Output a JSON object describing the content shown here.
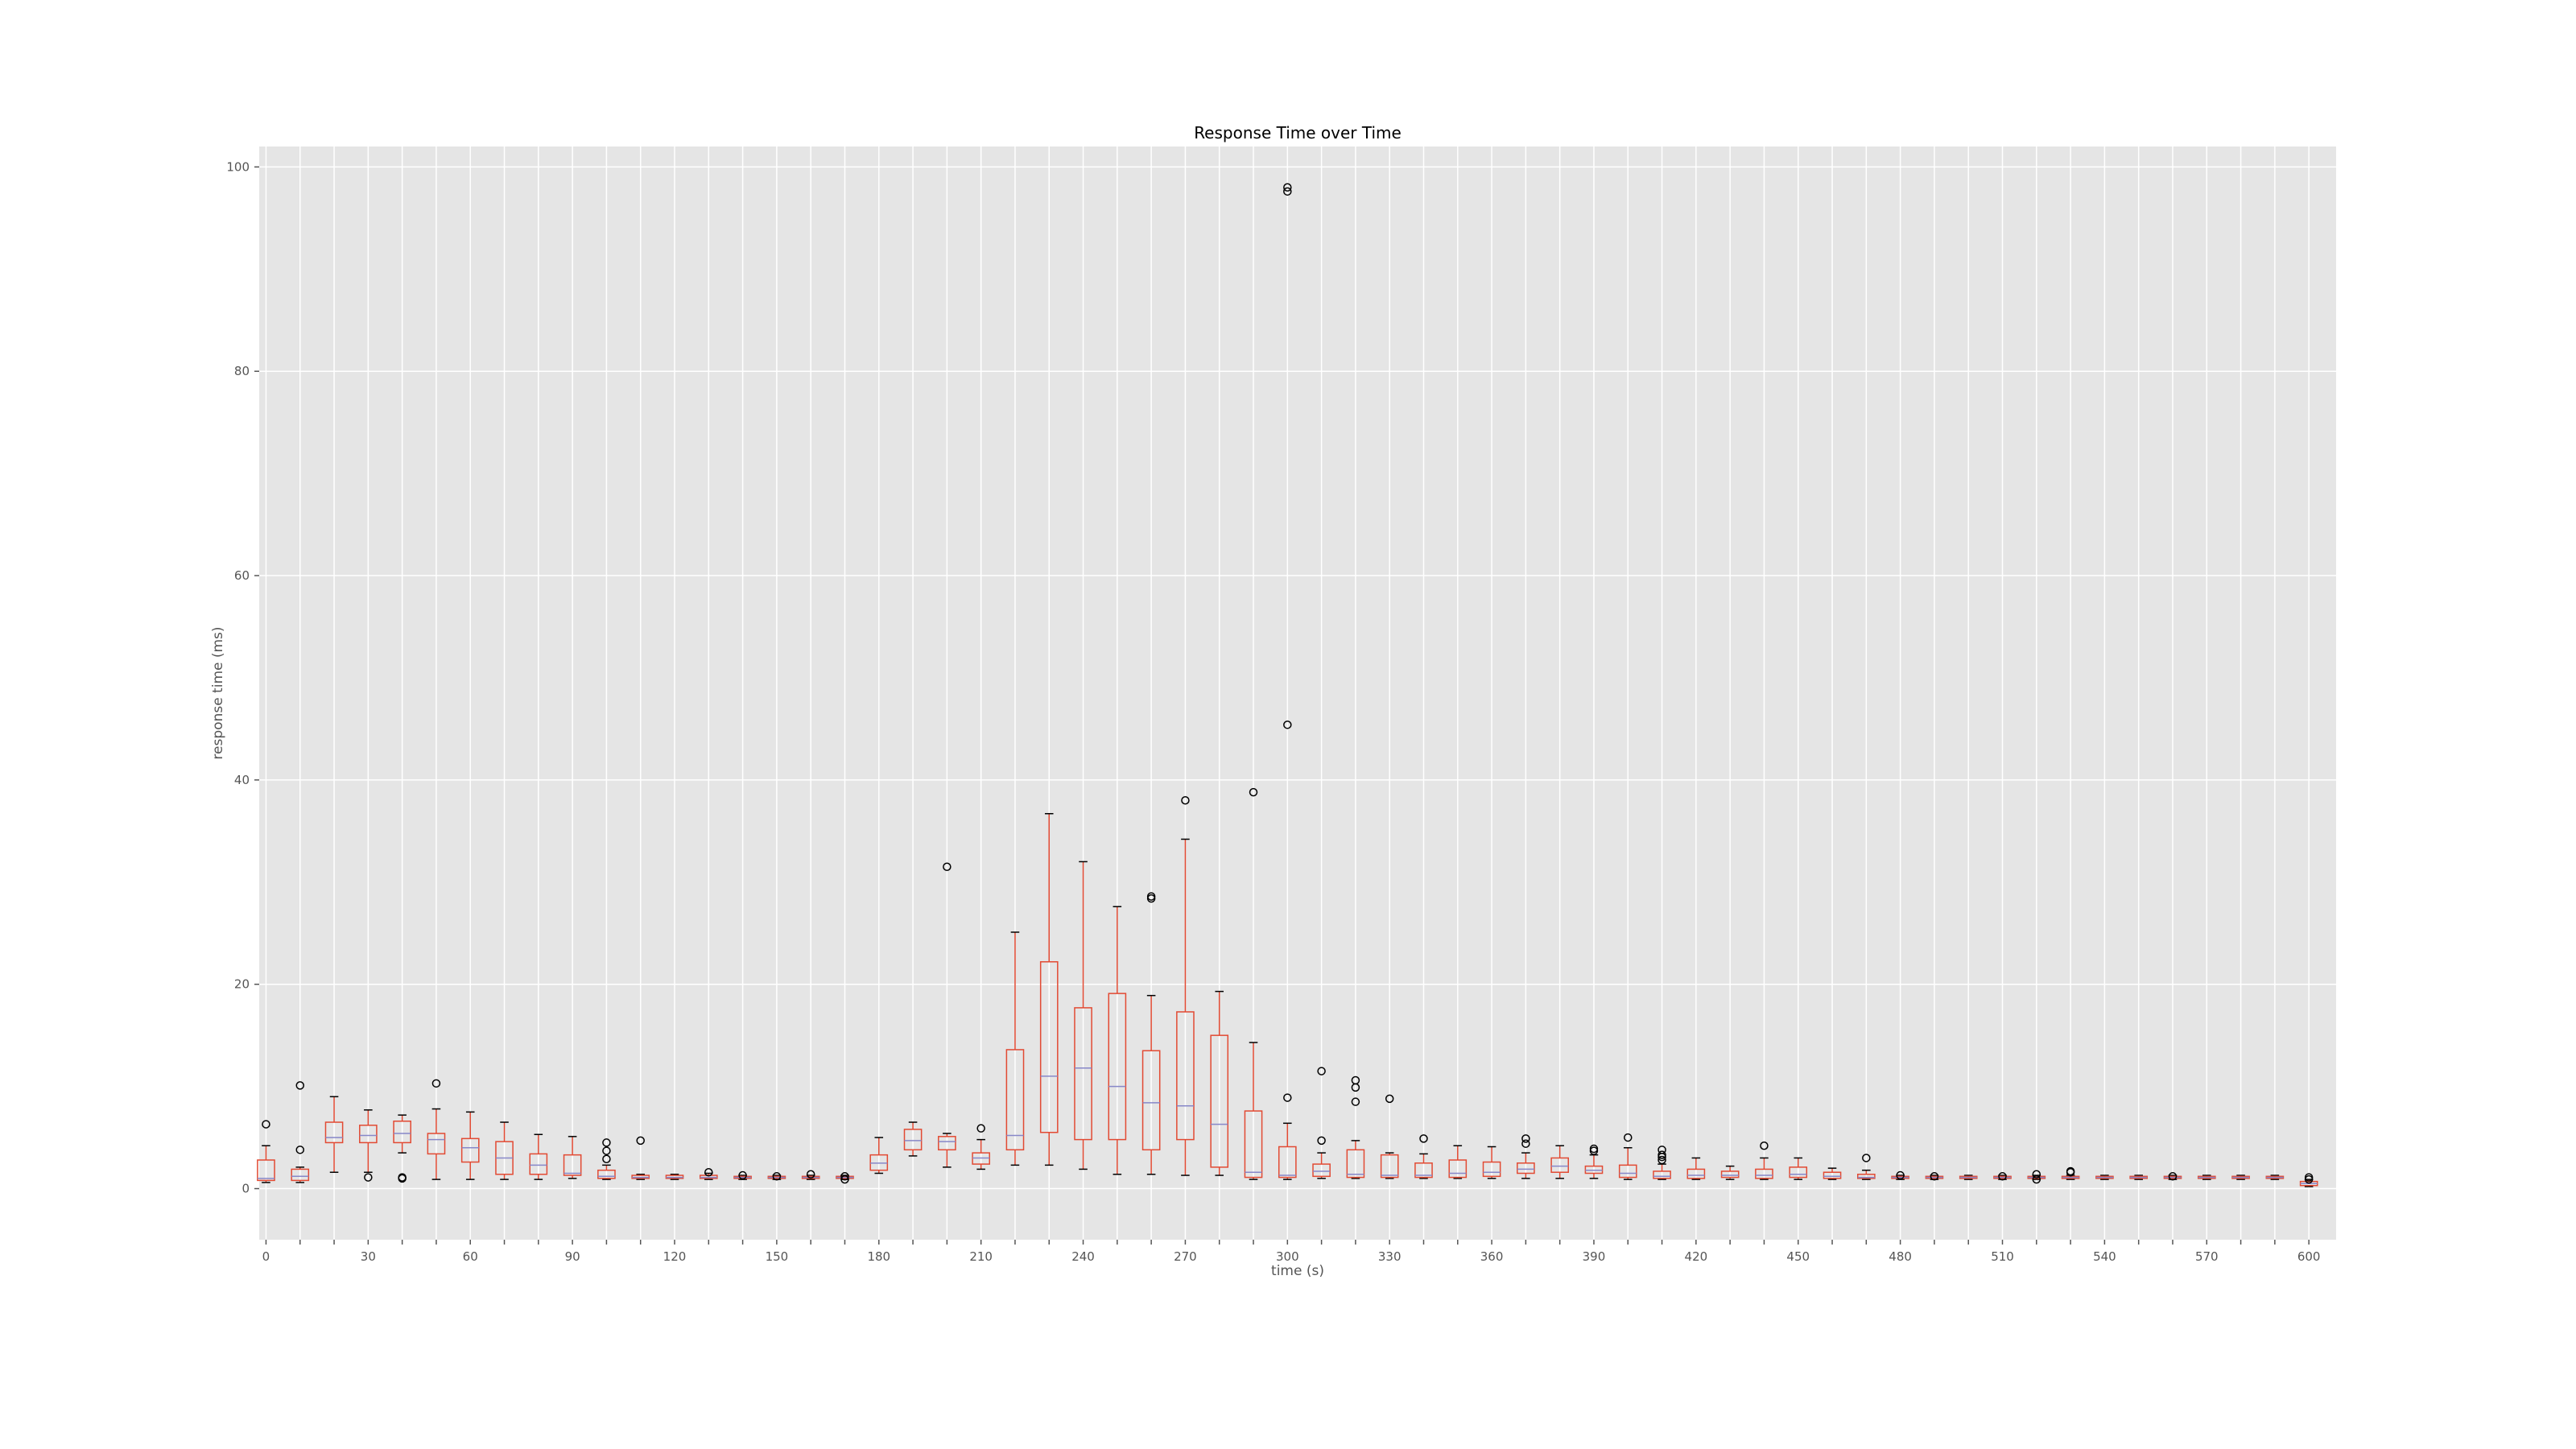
{
  "chart_data": {
    "type": "box",
    "title": "Response Time over Time",
    "xlabel": "time (s)",
    "ylabel": "response time (ms)",
    "xlim": [
      -2,
      608
    ],
    "ylim": [
      -5,
      102
    ],
    "x_ticks_labeled": [
      0,
      30,
      60,
      90,
      120,
      150,
      180,
      210,
      240,
      270,
      300,
      330,
      360,
      390,
      420,
      450,
      480,
      510,
      540,
      570,
      600
    ],
    "y_ticks": [
      0,
      20,
      40,
      60,
      80,
      100
    ],
    "grid": true,
    "colors": {
      "plot_background": "#e5e5e5",
      "grid": "#ffffff",
      "box": "#e24a33",
      "median": "#8787c8",
      "whisker": "#e24a33",
      "cap": "#000000",
      "outlier": "#000000"
    },
    "boxes": [
      {
        "x": 0,
        "q1": 0.8,
        "median": 1.0,
        "q3": 2.8,
        "whislo": 0.6,
        "whishi": 4.2,
        "fliers": [
          6.3
        ]
      },
      {
        "x": 10,
        "q1": 0.8,
        "median": 1.2,
        "q3": 1.9,
        "whislo": 0.6,
        "whishi": 2.1,
        "fliers": [
          3.8,
          10.1
        ]
      },
      {
        "x": 20,
        "q1": 4.5,
        "median": 5.0,
        "q3": 6.5,
        "whislo": 1.6,
        "whishi": 9.0,
        "fliers": []
      },
      {
        "x": 30,
        "q1": 4.5,
        "median": 5.2,
        "q3": 6.2,
        "whislo": 1.6,
        "whishi": 7.7,
        "fliers": [
          1.1
        ]
      },
      {
        "x": 40,
        "q1": 4.5,
        "median": 5.4,
        "q3": 6.6,
        "whislo": 3.5,
        "whishi": 7.2,
        "fliers": [
          1.0,
          1.1
        ]
      },
      {
        "x": 50,
        "q1": 3.4,
        "median": 4.8,
        "q3": 5.4,
        "whislo": 0.9,
        "whishi": 7.8,
        "fliers": [
          10.3
        ]
      },
      {
        "x": 60,
        "q1": 2.6,
        "median": 4.0,
        "q3": 4.9,
        "whislo": 0.9,
        "whishi": 7.5,
        "fliers": []
      },
      {
        "x": 70,
        "q1": 1.4,
        "median": 3.0,
        "q3": 4.6,
        "whislo": 0.9,
        "whishi": 6.5,
        "fliers": []
      },
      {
        "x": 80,
        "q1": 1.4,
        "median": 2.3,
        "q3": 3.4,
        "whislo": 0.9,
        "whishi": 5.3,
        "fliers": []
      },
      {
        "x": 90,
        "q1": 1.3,
        "median": 1.5,
        "q3": 3.3,
        "whislo": 1.0,
        "whishi": 5.1,
        "fliers": []
      },
      {
        "x": 100,
        "q1": 1.0,
        "median": 1.2,
        "q3": 1.8,
        "whislo": 0.9,
        "whishi": 2.3,
        "fliers": [
          2.9,
          3.7,
          4.5
        ]
      },
      {
        "x": 110,
        "q1": 1.0,
        "median": 1.1,
        "q3": 1.3,
        "whislo": 0.9,
        "whishi": 1.4,
        "fliers": [
          4.7
        ]
      },
      {
        "x": 120,
        "q1": 1.0,
        "median": 1.1,
        "q3": 1.3,
        "whislo": 0.9,
        "whishi": 1.4,
        "fliers": []
      },
      {
        "x": 130,
        "q1": 1.0,
        "median": 1.1,
        "q3": 1.3,
        "whislo": 0.9,
        "whishi": 1.5,
        "fliers": [
          1.6
        ]
      },
      {
        "x": 140,
        "q1": 1.0,
        "median": 1.1,
        "q3": 1.2,
        "whislo": 0.9,
        "whishi": 1.3,
        "fliers": [
          1.3
        ]
      },
      {
        "x": 150,
        "q1": 1.0,
        "median": 1.1,
        "q3": 1.2,
        "whislo": 0.9,
        "whishi": 1.3,
        "fliers": [
          1.2
        ]
      },
      {
        "x": 160,
        "q1": 1.0,
        "median": 1.1,
        "q3": 1.2,
        "whislo": 0.9,
        "whishi": 1.3,
        "fliers": [
          1.4
        ]
      },
      {
        "x": 170,
        "q1": 1.0,
        "median": 1.1,
        "q3": 1.2,
        "whislo": 0.9,
        "whishi": 1.3,
        "fliers": [
          0.9,
          1.2
        ]
      },
      {
        "x": 180,
        "q1": 1.8,
        "median": 2.5,
        "q3": 3.3,
        "whislo": 1.5,
        "whishi": 5.0,
        "fliers": []
      },
      {
        "x": 190,
        "q1": 3.8,
        "median": 4.7,
        "q3": 5.8,
        "whislo": 3.2,
        "whishi": 6.5,
        "fliers": []
      },
      {
        "x": 200,
        "q1": 3.8,
        "median": 4.6,
        "q3": 5.1,
        "whislo": 2.1,
        "whishi": 5.4,
        "fliers": [
          31.5
        ]
      },
      {
        "x": 210,
        "q1": 2.4,
        "median": 3.0,
        "q3": 3.5,
        "whislo": 1.9,
        "whishi": 4.8,
        "fliers": [
          5.9
        ]
      },
      {
        "x": 220,
        "q1": 3.8,
        "median": 5.2,
        "q3": 13.6,
        "whislo": 2.3,
        "whishi": 25.1,
        "fliers": []
      },
      {
        "x": 230,
        "q1": 5.5,
        "median": 11.0,
        "q3": 22.2,
        "whislo": 2.3,
        "whishi": 36.7,
        "fliers": []
      },
      {
        "x": 240,
        "q1": 4.8,
        "median": 11.8,
        "q3": 17.7,
        "whislo": 1.9,
        "whishi": 32.0,
        "fliers": []
      },
      {
        "x": 250,
        "q1": 4.8,
        "median": 10.0,
        "q3": 19.1,
        "whislo": 1.4,
        "whishi": 27.6,
        "fliers": []
      },
      {
        "x": 260,
        "q1": 3.8,
        "median": 8.4,
        "q3": 13.5,
        "whislo": 1.4,
        "whishi": 18.9,
        "fliers": [
          28.4,
          28.6
        ]
      },
      {
        "x": 270,
        "q1": 4.8,
        "median": 8.1,
        "q3": 17.3,
        "whislo": 1.3,
        "whishi": 34.2,
        "fliers": [
          38.0
        ]
      },
      {
        "x": 280,
        "q1": 2.1,
        "median": 6.3,
        "q3": 15.0,
        "whislo": 1.3,
        "whishi": 19.3,
        "fliers": []
      },
      {
        "x": 290,
        "q1": 1.1,
        "median": 1.6,
        "q3": 7.6,
        "whislo": 0.9,
        "whishi": 14.3,
        "fliers": [
          38.8
        ]
      },
      {
        "x": 300,
        "q1": 1.1,
        "median": 1.3,
        "q3": 4.1,
        "whislo": 0.9,
        "whishi": 6.4,
        "fliers": [
          8.9,
          45.4,
          97.6,
          98.0
        ]
      },
      {
        "x": 310,
        "q1": 1.2,
        "median": 1.7,
        "q3": 2.4,
        "whislo": 1.0,
        "whishi": 3.5,
        "fliers": [
          4.7,
          11.5
        ]
      },
      {
        "x": 320,
        "q1": 1.1,
        "median": 1.4,
        "q3": 3.8,
        "whislo": 1.0,
        "whishi": 4.7,
        "fliers": [
          8.5,
          9.9,
          10.6
        ]
      },
      {
        "x": 330,
        "q1": 1.1,
        "median": 1.3,
        "q3": 3.3,
        "whislo": 1.0,
        "whishi": 3.5,
        "fliers": [
          8.8
        ]
      },
      {
        "x": 340,
        "q1": 1.1,
        "median": 1.3,
        "q3": 2.5,
        "whislo": 1.0,
        "whishi": 3.4,
        "fliers": [
          4.9
        ]
      },
      {
        "x": 350,
        "q1": 1.1,
        "median": 1.5,
        "q3": 2.8,
        "whislo": 1.0,
        "whishi": 4.2,
        "fliers": []
      },
      {
        "x": 360,
        "q1": 1.2,
        "median": 1.6,
        "q3": 2.6,
        "whislo": 1.0,
        "whishi": 4.1,
        "fliers": []
      },
      {
        "x": 370,
        "q1": 1.5,
        "median": 1.9,
        "q3": 2.5,
        "whislo": 1.0,
        "whishi": 3.5,
        "fliers": [
          4.4,
          4.9
        ]
      },
      {
        "x": 380,
        "q1": 1.6,
        "median": 2.2,
        "q3": 3.0,
        "whislo": 1.0,
        "whishi": 4.2,
        "fliers": []
      },
      {
        "x": 390,
        "q1": 1.5,
        "median": 1.8,
        "q3": 2.2,
        "whislo": 1.0,
        "whishi": 3.3,
        "fliers": [
          3.7,
          3.9
        ]
      },
      {
        "x": 400,
        "q1": 1.1,
        "median": 1.5,
        "q3": 2.3,
        "whislo": 0.9,
        "whishi": 4.0,
        "fliers": [
          5.0
        ]
      },
      {
        "x": 410,
        "q1": 1.0,
        "median": 1.2,
        "q3": 1.7,
        "whislo": 0.9,
        "whishi": 2.4,
        "fliers": [
          2.8,
          3.1,
          3.3,
          3.8
        ]
      },
      {
        "x": 420,
        "q1": 1.0,
        "median": 1.3,
        "q3": 1.9,
        "whislo": 0.9,
        "whishi": 3.0,
        "fliers": []
      },
      {
        "x": 430,
        "q1": 1.1,
        "median": 1.3,
        "q3": 1.7,
        "whislo": 0.9,
        "whishi": 2.2,
        "fliers": []
      },
      {
        "x": 440,
        "q1": 1.0,
        "median": 1.3,
        "q3": 1.9,
        "whislo": 0.9,
        "whishi": 3.0,
        "fliers": [
          4.2
        ]
      },
      {
        "x": 450,
        "q1": 1.1,
        "median": 1.4,
        "q3": 2.1,
        "whislo": 0.9,
        "whishi": 3.0,
        "fliers": []
      },
      {
        "x": 460,
        "q1": 1.0,
        "median": 1.2,
        "q3": 1.6,
        "whislo": 0.9,
        "whishi": 2.0,
        "fliers": []
      },
      {
        "x": 470,
        "q1": 1.0,
        "median": 1.1,
        "q3": 1.4,
        "whislo": 0.9,
        "whishi": 1.8,
        "fliers": [
          3.0
        ]
      },
      {
        "x": 480,
        "q1": 1.0,
        "median": 1.1,
        "q3": 1.2,
        "whislo": 0.9,
        "whishi": 1.3,
        "fliers": [
          1.3
        ]
      },
      {
        "x": 490,
        "q1": 1.0,
        "median": 1.1,
        "q3": 1.2,
        "whislo": 0.9,
        "whishi": 1.3,
        "fliers": [
          1.2
        ]
      },
      {
        "x": 500,
        "q1": 1.0,
        "median": 1.1,
        "q3": 1.2,
        "whislo": 0.9,
        "whishi": 1.3,
        "fliers": []
      },
      {
        "x": 510,
        "q1": 1.0,
        "median": 1.1,
        "q3": 1.2,
        "whislo": 0.9,
        "whishi": 1.3,
        "fliers": [
          1.2
        ]
      },
      {
        "x": 520,
        "q1": 1.0,
        "median": 1.1,
        "q3": 1.2,
        "whislo": 0.9,
        "whishi": 1.3,
        "fliers": [
          0.9,
          1.4
        ]
      },
      {
        "x": 530,
        "q1": 1.0,
        "median": 1.1,
        "q3": 1.2,
        "whislo": 0.9,
        "whishi": 1.3,
        "fliers": [
          1.6,
          1.7
        ]
      },
      {
        "x": 540,
        "q1": 1.0,
        "median": 1.1,
        "q3": 1.2,
        "whislo": 0.9,
        "whishi": 1.3,
        "fliers": []
      },
      {
        "x": 550,
        "q1": 1.0,
        "median": 1.1,
        "q3": 1.2,
        "whislo": 0.9,
        "whishi": 1.3,
        "fliers": []
      },
      {
        "x": 560,
        "q1": 1.0,
        "median": 1.1,
        "q3": 1.2,
        "whislo": 0.9,
        "whishi": 1.3,
        "fliers": [
          1.2
        ]
      },
      {
        "x": 570,
        "q1": 1.0,
        "median": 1.1,
        "q3": 1.2,
        "whislo": 0.9,
        "whishi": 1.3,
        "fliers": []
      },
      {
        "x": 580,
        "q1": 1.0,
        "median": 1.1,
        "q3": 1.2,
        "whislo": 0.9,
        "whishi": 1.3,
        "fliers": []
      },
      {
        "x": 590,
        "q1": 1.0,
        "median": 1.1,
        "q3": 1.2,
        "whislo": 0.9,
        "whishi": 1.3,
        "fliers": []
      },
      {
        "x": 600,
        "q1": 0.3,
        "median": 0.5,
        "q3": 0.7,
        "whislo": 0.2,
        "whishi": 0.9,
        "fliers": [
          0.9,
          1.1
        ]
      }
    ]
  }
}
